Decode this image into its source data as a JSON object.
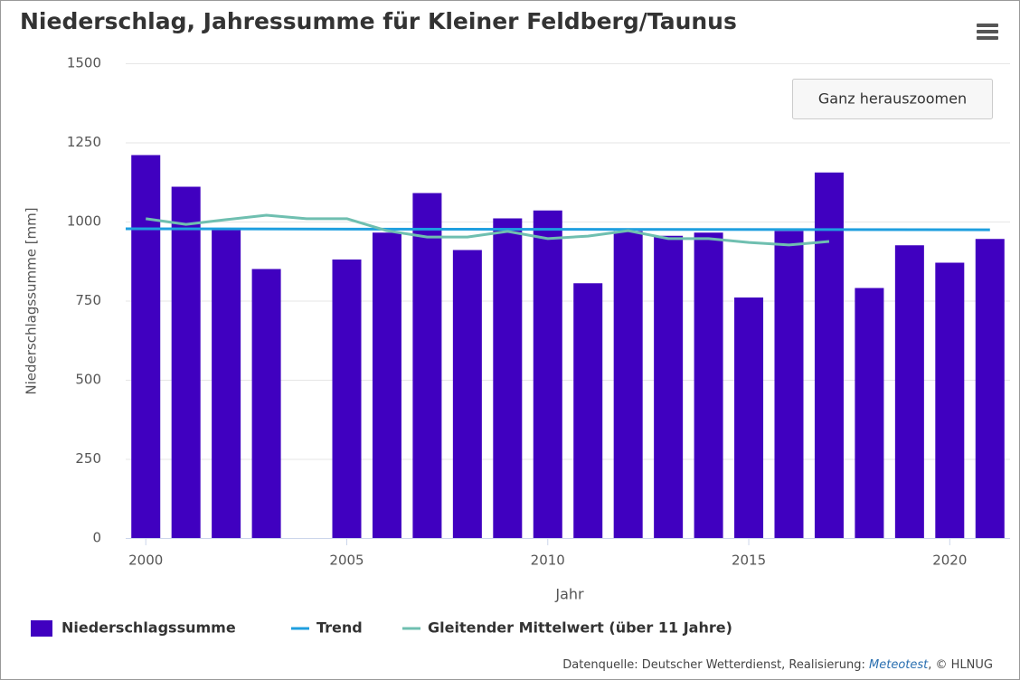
{
  "chart_data": {
    "type": "bar",
    "title": "Niederschlag, Jahressumme für Kleiner Feldberg/Taunus",
    "x_label": "Jahr",
    "y_label": "Niederschlagssumme [mm]",
    "zoom_button": "Ganz herauszoomen",
    "credits": [
      "Datenquelle: Deutscher Wetterdienst, Realisierung: ",
      "Meteotest",
      ", © HLNUG"
    ],
    "x": [
      2000,
      2001,
      2002,
      2003,
      2004,
      2005,
      2006,
      2007,
      2008,
      2009,
      2010,
      2011,
      2012,
      2013,
      2014,
      2015,
      2016,
      2017,
      2018,
      2019,
      2020,
      2021
    ],
    "series": [
      {
        "name": "Niederschlagssumme",
        "type": "bar",
        "color": "#4000c0",
        "values": [
          1210,
          1110,
          975,
          850,
          null,
          880,
          965,
          1090,
          910,
          1010,
          1035,
          805,
          970,
          955,
          965,
          760,
          970,
          1155,
          790,
          925,
          870,
          945
        ]
      },
      {
        "name": "Trend",
        "type": "line",
        "color": "#1f9fdf",
        "x": [
          1999.5,
          2021
        ],
        "values": [
          977,
          974
        ]
      },
      {
        "name": "Gleitender Mittelwert (über 11 Jahre)",
        "type": "line",
        "color": "#6fbfb0",
        "x": [
          2000,
          2001,
          2002,
          2003,
          2004,
          2005,
          2006,
          2007,
          2008,
          2009,
          2010,
          2011,
          2012,
          2013,
          2014,
          2015,
          2016,
          2017
        ],
        "values": [
          1009,
          991,
          1006,
          1020,
          1009,
          1009,
          971,
          951,
          951,
          969,
          946,
          954,
          971,
          946,
          946,
          934,
          926,
          937
        ]
      }
    ],
    "xlim": [
      1999.5,
      2021.5
    ],
    "xticks": [
      2000,
      2005,
      2010,
      2015,
      2020
    ],
    "ylim": [
      0,
      1500
    ],
    "yticks": [
      0,
      250,
      500,
      750,
      1000,
      1250,
      1500
    ],
    "grid": true,
    "legend": "bottom"
  }
}
